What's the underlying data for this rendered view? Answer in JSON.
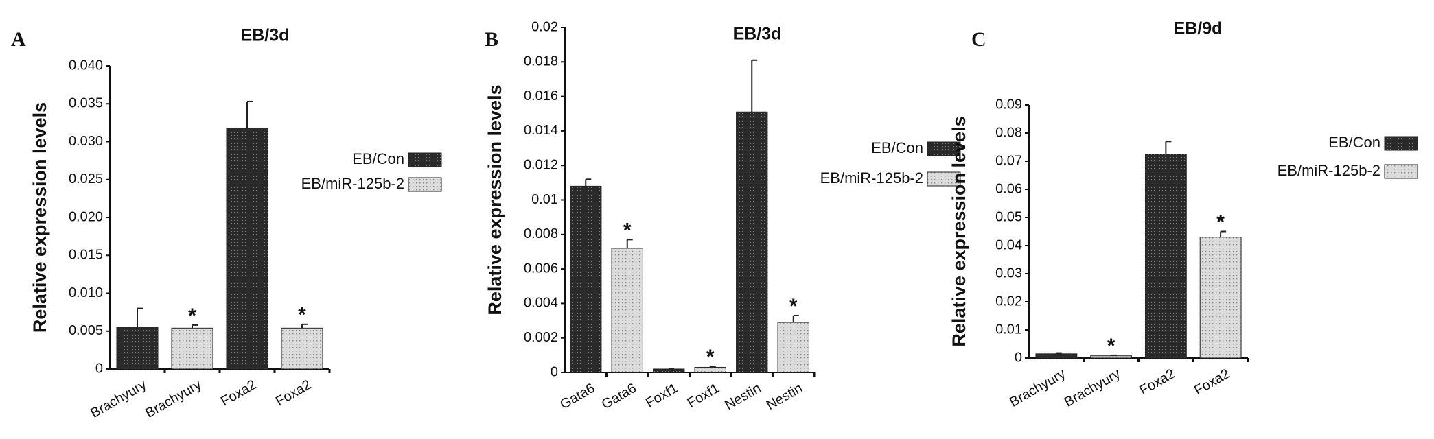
{
  "chart_data": [
    {
      "type": "bar",
      "panel": "A",
      "title": "EB/3d",
      "y_label": "Relative expression levels",
      "categories": [
        "Brachyury",
        "Brachyury",
        "Foxa2",
        "Foxa2"
      ],
      "series": [
        {
          "name": "EB/Con",
          "color": "#2b2b2b",
          "values": [
            0.0055,
            null,
            0.0318,
            null
          ],
          "errors": [
            0.0025,
            null,
            0.0035,
            null
          ]
        },
        {
          "name": "EB/miR-125b-2",
          "color": "#cfcfcf",
          "values": [
            null,
            0.0054,
            null,
            0.0054
          ],
          "errors": [
            null,
            0.0004,
            null,
            0.0005
          ],
          "significance": [
            null,
            "*",
            null,
            "*"
          ]
        }
      ],
      "ylim": [
        0,
        0.04
      ],
      "yticks": [
        0,
        0.005,
        {
          "value": 0.01,
          "label": "0.010"
        },
        0.015,
        {
          "value": 0.02,
          "label": "0.020"
        },
        0.025,
        {
          "value": 0.03,
          "label": "0.030"
        },
        0.035,
        {
          "value": 0.04,
          "label": "0.040"
        }
      ]
    },
    {
      "type": "bar",
      "panel": "B",
      "title": "EB/3d",
      "y_label": "Relative expression levels",
      "categories": [
        "Gata6",
        "Gata6",
        "Foxf1",
        "Foxf1",
        "Nestin",
        "Nestin"
      ],
      "series": [
        {
          "name": "EB/Con",
          "color": "#2b2b2b",
          "values": [
            0.0108,
            null,
            0.0002,
            null,
            0.0151,
            null
          ],
          "errors": [
            0.0004,
            null,
            2e-05,
            null,
            0.003,
            null
          ]
        },
        {
          "name": "EB/miR-125b-2",
          "color": "#cfcfcf",
          "values": [
            null,
            0.0072,
            null,
            0.0003,
            null,
            0.0029
          ],
          "errors": [
            null,
            0.0005,
            null,
            5e-05,
            null,
            0.0004
          ],
          "significance": [
            null,
            "*",
            null,
            "*",
            null,
            "*"
          ]
        }
      ],
      "ylim": [
        0,
        0.02
      ],
      "yticks": [
        0,
        0.002,
        0.004,
        0.006,
        0.008,
        0.01,
        0.012,
        0.014,
        0.016,
        0.018,
        0.02
      ]
    },
    {
      "type": "bar",
      "panel": "C",
      "title": "EB/9d",
      "y_label": "Relative expression levels",
      "categories": [
        "Brachyury",
        "Brachyury",
        "Foxa2",
        "Foxa2"
      ],
      "series": [
        {
          "name": "EB/Con",
          "color": "#2b2b2b",
          "values": [
            0.0015,
            null,
            0.0725,
            null
          ],
          "errors": [
            0.0003,
            null,
            0.0045,
            null
          ]
        },
        {
          "name": "EB/miR-125b-2",
          "color": "#cfcfcf",
          "values": [
            null,
            0.0008,
            null,
            0.043
          ],
          "errors": [
            null,
            0.0002,
            null,
            0.002
          ],
          "significance": [
            null,
            "*",
            null,
            "*"
          ]
        }
      ],
      "ylim": [
        0,
        0.09
      ],
      "yticks": [
        0,
        0.01,
        0.02,
        0.03,
        0.04,
        0.05,
        0.06,
        0.07,
        0.08,
        0.09
      ]
    }
  ]
}
